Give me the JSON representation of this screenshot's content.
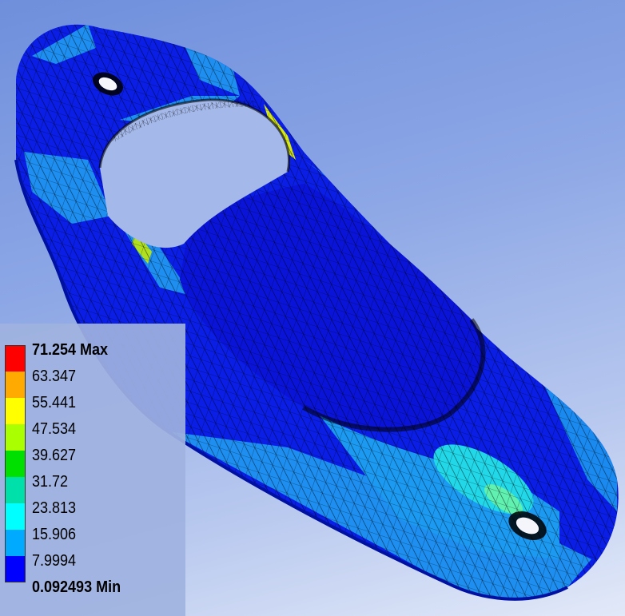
{
  "legend": {
    "labels": {
      "max": "71.254 Max",
      "l1": "63.347",
      "l2": "55.441",
      "l3": "47.534",
      "l4": "39.627",
      "l5": "31.72",
      "l6": "23.813",
      "l7": "15.906",
      "l8": "7.9994",
      "min": "0.092493 Min"
    },
    "colors": [
      "#ff0000",
      "#ffaa00",
      "#ffff00",
      "#aaff00",
      "#00e000",
      "#00e0aa",
      "#00ffff",
      "#00aaff",
      "#0000ff"
    ]
  },
  "viewport": {
    "background_top": "#6f8fdc",
    "background_bottom": "#e2e9f8",
    "part_base_color": "#0a1ee6",
    "mesh_color": "#000000"
  }
}
